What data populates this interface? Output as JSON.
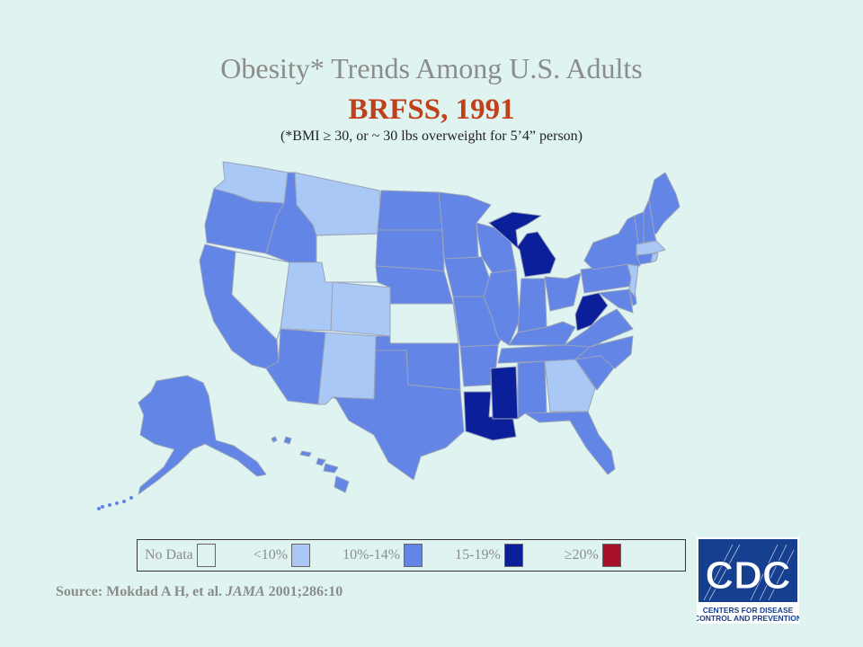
{
  "title": "Obesity* Trends Among U.S. Adults",
  "subtitle": "BRFSS, 1991",
  "footnote": "(*BMI ≥ 30, or ~ 30 lbs overweight for 5’4” person)",
  "legend": [
    {
      "label": "No Data",
      "color": "#dff4f0"
    },
    {
      "label": "<10%",
      "color": "#a9c8f5"
    },
    {
      "label": "10%-14%",
      "color": "#6385e6"
    },
    {
      "label": "15-19%",
      "color": "#0a1f99"
    },
    {
      "label": "≥20%",
      "color": "#a8102a"
    }
  ],
  "source": {
    "prefix": "Source: Mokdad A H, et al. ",
    "journal": "JAMA",
    "suffix": " 2001;286:10"
  },
  "logo": {
    "text": "CDC",
    "line1": "CENTERS FOR DISEASE",
    "line2": "CONTROL AND PREVENTION"
  },
  "map": {
    "categories": {
      "0": "No Data",
      "1": "<10%",
      "2": "10%-14%",
      "3": "15-19%"
    },
    "states": {
      "WA": 1,
      "OR": 2,
      "CA": 2,
      "NV": 0,
      "ID": 2,
      "MT": 1,
      "WY": 0,
      "UT": 1,
      "CO": 1,
      "AZ": 2,
      "NM": 1,
      "ND": 2,
      "SD": 2,
      "NE": 2,
      "KS": 0,
      "OK": 2,
      "TX": 2,
      "MN": 2,
      "IA": 2,
      "MO": 2,
      "AR": 2,
      "LA": 3,
      "WI": 2,
      "IL": 2,
      "MI": 3,
      "IN": 2,
      "OH": 2,
      "KY": 2,
      "TN": 2,
      "MS": 3,
      "AL": 2,
      "GA": 1,
      "FL": 2,
      "SC": 2,
      "NC": 2,
      "VA": 2,
      "WV": 3,
      "PA": 2,
      "NY": 2,
      "VT": 2,
      "NH": 2,
      "ME": 2,
      "MA": 1,
      "RI": 1,
      "CT": 2,
      "NJ": 1,
      "DE": 2,
      "MD": 2,
      "AK": 2,
      "HI": 2
    }
  }
}
